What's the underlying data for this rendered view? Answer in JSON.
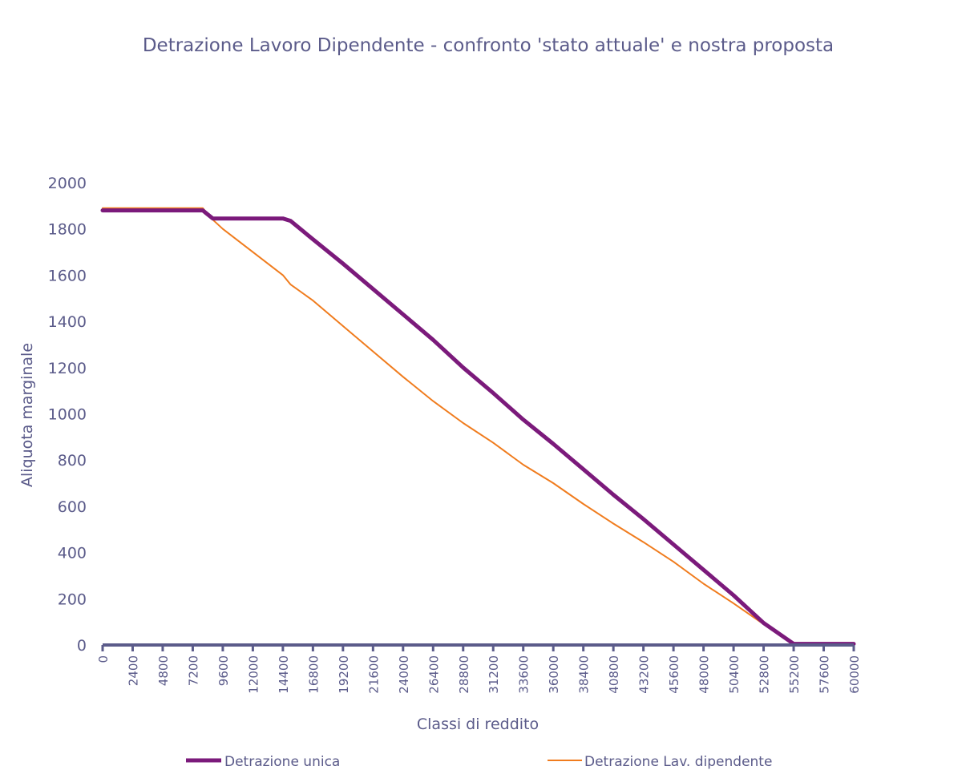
{
  "chart_data": {
    "type": "line",
    "title": "Detrazione Lavoro Dipendente - confronto 'stato attuale' e nostra proposta",
    "xlabel": "Classi di reddito",
    "ylabel": "Aliquota marginale",
    "xlim": [
      0,
      60000
    ],
    "ylim": [
      0,
      2000
    ],
    "y_ticks": [
      "0",
      "200",
      "400",
      "600",
      "800",
      "1000",
      "1200",
      "1400",
      "1600",
      "1800",
      "2000"
    ],
    "x_ticks": [
      "0",
      "2400",
      "4800",
      "7200",
      "9600",
      "12000",
      "14400",
      "16800",
      "19200",
      "21600",
      "24000",
      "26400",
      "28800",
      "31200",
      "33600",
      "36000",
      "38400",
      "40800",
      "43200",
      "45600",
      "48000",
      "50400",
      "52800",
      "55200",
      "57600",
      "60000"
    ],
    "grid": false,
    "legend_position": "bottom",
    "series": [
      {
        "name": "Detrazione unica",
        "color": "#7b1a7b",
        "x": [
          0,
          2400,
          4800,
          7200,
          8000,
          8800,
          9600,
          12000,
          14400,
          15000,
          16800,
          19200,
          21600,
          24000,
          26400,
          28800,
          31200,
          33600,
          36000,
          38400,
          40800,
          43200,
          45600,
          48000,
          50400,
          52800,
          55200,
          57600,
          60000
        ],
        "y": [
          1880,
          1880,
          1880,
          1880,
          1880,
          1845,
          1845,
          1845,
          1845,
          1835,
          1755,
          1650,
          1540,
          1430,
          1320,
          1200,
          1090,
          975,
          870,
          760,
          650,
          545,
          435,
          325,
          215,
          95,
          5,
          5,
          5
        ]
      },
      {
        "name": "Detrazione Lav. dipendente",
        "color": "#f07c1e",
        "x": [
          0,
          2400,
          4800,
          7200,
          8000,
          8800,
          9600,
          12000,
          14400,
          15000,
          16800,
          19200,
          21600,
          24000,
          26400,
          28800,
          31200,
          33600,
          36000,
          38400,
          40800,
          43200,
          45600,
          48000,
          50400,
          52800,
          55200,
          57600,
          60000
        ],
        "y": [
          1890,
          1890,
          1890,
          1890,
          1890,
          1840,
          1800,
          1700,
          1600,
          1560,
          1490,
          1380,
          1270,
          1160,
          1055,
          960,
          875,
          780,
          700,
          610,
          525,
          445,
          360,
          265,
          180,
          90,
          5,
          5,
          5
        ]
      }
    ]
  }
}
